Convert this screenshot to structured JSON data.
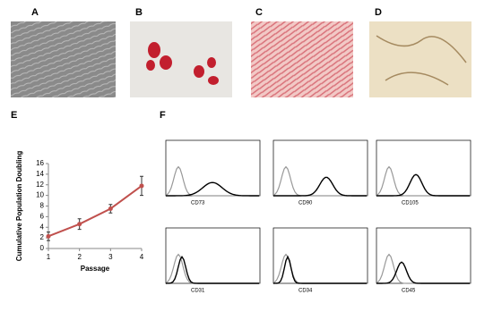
{
  "panel_labels": [
    "A",
    "B",
    "C",
    "D",
    "E",
    "F"
  ],
  "chart_data": {
    "type": "line",
    "x": [
      1,
      2,
      3,
      4
    ],
    "series": [
      {
        "values": [
          2.3,
          4.6,
          7.5,
          11.8
        ],
        "errors": [
          0.8,
          1.0,
          0.8,
          1.8
        ],
        "color": "#c0504d"
      }
    ],
    "xlim": [
      1,
      4
    ],
    "xticks": [
      1,
      2,
      3,
      4
    ],
    "ylim": [
      0,
      16
    ],
    "yticks": [
      0,
      2,
      4,
      6,
      8,
      10,
      12,
      14,
      16
    ],
    "xlabel": "Passage",
    "ylabel": "Cumulative Population Doubling"
  },
  "flow_cytometry": {
    "markers": [
      "CD73",
      "CD90",
      "CD105",
      "CD31",
      "CD34",
      "CD45"
    ]
  }
}
